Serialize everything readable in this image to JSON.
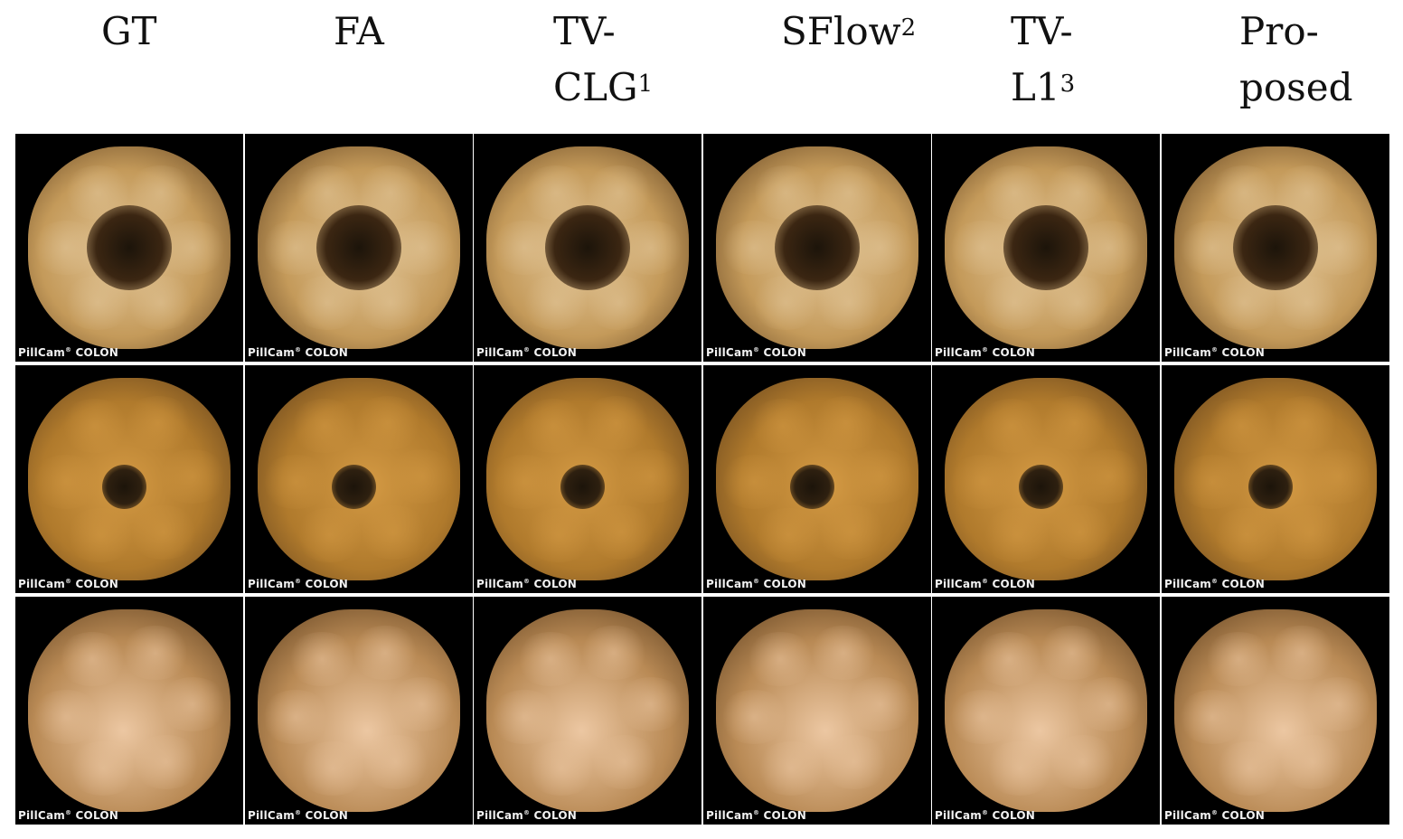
{
  "columns": [
    {
      "id": "gt",
      "name": "GT",
      "sup": ""
    },
    {
      "id": "fa",
      "name": "FA",
      "sup": ""
    },
    {
      "id": "tvclg",
      "name_line1": "TV-",
      "name": "CLG",
      "sup": "1"
    },
    {
      "id": "sflow",
      "name": "SFlow",
      "sup": "2"
    },
    {
      "id": "tvl1",
      "name_line1": "TV-",
      "name": "L1",
      "sup": "3"
    },
    {
      "id": "proposed",
      "name_line1": "Pro-",
      "name": "posed",
      "sup": ""
    }
  ],
  "brand": {
    "name": "PillCam",
    "reg": "®",
    "product": "COLON"
  },
  "rows": [
    {
      "id": "row-1",
      "tissue": "#c49a5a",
      "tissue_light": "#e3c79a",
      "lumen": "#3b2612",
      "lumen_size": 0.42
    },
    {
      "id": "row-2",
      "tissue": "#b07a2c",
      "tissue_light": "#d49a44",
      "lumen": "#2e2010",
      "lumen_size": 0.22
    },
    {
      "id": "row-3",
      "tissue": "#b98a55",
      "tissue_light": "#ecc7a2",
      "lumen": "#4e3318",
      "lumen_size": 0.0
    }
  ]
}
